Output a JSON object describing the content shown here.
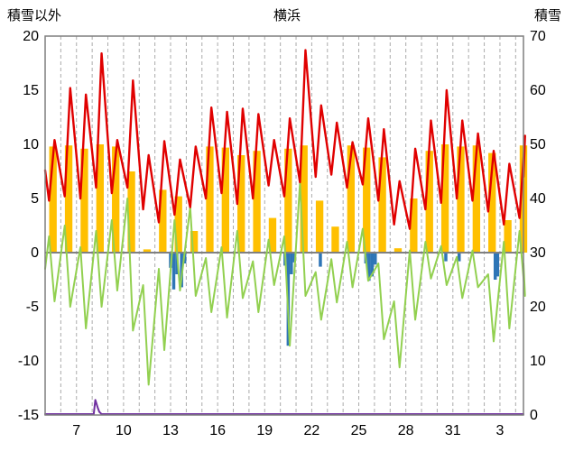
{
  "header": {
    "left_axis_title": "積雪以外",
    "title": "横浜",
    "right_axis_title": "積雪"
  },
  "chart_data": {
    "type": "combo line+bar weather chart",
    "title": "横浜",
    "left_axis": {
      "label": "積雪以外",
      "min": -15,
      "max": 20,
      "ticks": [
        20,
        15,
        10,
        5,
        0,
        -5,
        -10,
        -15
      ]
    },
    "right_axis": {
      "label": "積雪",
      "min": 0,
      "max": 70,
      "ticks": [
        70,
        60,
        50,
        40,
        30,
        20,
        10,
        0
      ]
    },
    "x_axis": {
      "start": 5.0,
      "end": 35.5,
      "grid_every_day": 1,
      "ticks": [
        {
          "day": 7,
          "label": "7"
        },
        {
          "day": 10,
          "label": "10"
        },
        {
          "day": 13,
          "label": "13"
        },
        {
          "day": 16,
          "label": "16"
        },
        {
          "day": 19,
          "label": "19"
        },
        {
          "day": 22,
          "label": "22"
        },
        {
          "day": 25,
          "label": "25"
        },
        {
          "day": 28,
          "label": "28"
        },
        {
          "day": 31,
          "label": "31"
        },
        {
          "day": 34,
          "label": "3"
        }
      ]
    },
    "colors": {
      "red_line": "#e00000",
      "green_line": "#92d050",
      "sunshine": "#ffc000",
      "rain": "#2e75b6",
      "snow": "#7030a0",
      "zero_line": "#808080",
      "grid": "#ababab",
      "border": "#7f7f7f",
      "text": "#000000"
    },
    "series": [
      {
        "name": "red-line",
        "type": "line",
        "axis": "left",
        "color": "#e00000"
      },
      {
        "name": "green-line",
        "type": "line",
        "axis": "left",
        "color": "#92d050"
      },
      {
        "name": "sunshine-bars",
        "type": "bar",
        "axis": "left",
        "color": "#ffc000"
      },
      {
        "name": "rain-bars",
        "type": "bar",
        "axis": "left",
        "color": "#2e75b6"
      },
      {
        "name": "snow-line",
        "type": "line",
        "axis": "right",
        "color": "#7030a0"
      }
    ],
    "daily": [
      {
        "d": 5,
        "tmin": 4.8,
        "tmax": 10.4,
        "gmin": -4.5,
        "gmax": 1.5,
        "sun": 9.8
      },
      {
        "d": 6,
        "tmin": 5.2,
        "tmax": 15.2,
        "gmin": -5.0,
        "gmax": 2.5,
        "sun": 9.9
      },
      {
        "d": 7,
        "tmin": 5.0,
        "tmax": 14.6,
        "gmin": -7.0,
        "gmax": 0.5,
        "sun": 9.6
      },
      {
        "d": 8,
        "tmin": 6.0,
        "tmax": 18.4,
        "gmin": -5.0,
        "gmax": 2.0,
        "sun": 10.0
      },
      {
        "d": 9,
        "tmin": 5.5,
        "tmax": 10.4,
        "gmin": -3.5,
        "gmax": 3.0,
        "sun": 9.8
      },
      {
        "d": 10,
        "tmin": 6.0,
        "tmax": 15.9,
        "gmin": -7.2,
        "gmax": 5.0,
        "sun": 7.5
      },
      {
        "d": 11,
        "tmin": 4.0,
        "tmax": 9.0,
        "gmin": -12.2,
        "gmax": -3.0,
        "sun": 0.3
      },
      {
        "d": 12,
        "tmin": 2.8,
        "tmax": 10.3,
        "gmin": -9.0,
        "gmax": -1.5,
        "sun": 5.8
      },
      {
        "d": 13,
        "tmin": 3.5,
        "tmax": 8.6,
        "gmin": -3.5,
        "gmax": 3.0,
        "sun": 5.2
      },
      {
        "d": 14,
        "tmin": 4.2,
        "tmax": 9.8,
        "gmin": -4.0,
        "gmax": 4.2,
        "sun": 2.0
      },
      {
        "d": 15,
        "tmin": 5.0,
        "tmax": 13.4,
        "gmin": -5.5,
        "gmax": -0.5,
        "sun": 9.8
      },
      {
        "d": 16,
        "tmin": 5.5,
        "tmax": 13.0,
        "gmin": -6.0,
        "gmax": 0.5,
        "sun": 9.7
      },
      {
        "d": 17,
        "tmin": 4.5,
        "tmax": 13.3,
        "gmin": -4.2,
        "gmax": 2.0,
        "sun": 9.0
      },
      {
        "d": 18,
        "tmin": 5.0,
        "tmax": 12.8,
        "gmin": -5.5,
        "gmax": -0.8,
        "sun": 9.4
      },
      {
        "d": 19,
        "tmin": 6.2,
        "tmax": 10.4,
        "gmin": -3.0,
        "gmax": 1.2,
        "sun": 3.2
      },
      {
        "d": 20,
        "tmin": 5.2,
        "tmax": 12.4,
        "gmin": -8.6,
        "gmax": 1.5,
        "sun": 9.6
      },
      {
        "d": 21,
        "tmin": 6.5,
        "tmax": 18.7,
        "gmin": -4.0,
        "gmax": 6.4,
        "sun": 9.9
      },
      {
        "d": 22,
        "tmin": 7.0,
        "tmax": 13.6,
        "gmin": -6.2,
        "gmax": -1.8,
        "sun": 4.8
      },
      {
        "d": 23,
        "tmin": 7.2,
        "tmax": 12.0,
        "gmin": -4.6,
        "gmax": -0.6,
        "sun": 2.4
      },
      {
        "d": 24,
        "tmin": 6.0,
        "tmax": 10.2,
        "gmin": -3.2,
        "gmax": 1.0,
        "sun": 9.9
      },
      {
        "d": 25,
        "tmin": 6.3,
        "tmax": 12.4,
        "gmin": -2.6,
        "gmax": 2.2,
        "sun": 9.7
      },
      {
        "d": 26,
        "tmin": 4.8,
        "tmax": 11.4,
        "gmin": -8.0,
        "gmax": -1.0,
        "sun": 8.8
      },
      {
        "d": 27,
        "tmin": 2.6,
        "tmax": 6.6,
        "gmin": -10.6,
        "gmax": -4.5,
        "sun": 0.4
      },
      {
        "d": 28,
        "tmin": 2.2,
        "tmax": 9.6,
        "gmin": -6.2,
        "gmax": 0.2,
        "sun": 5.0
      },
      {
        "d": 29,
        "tmin": 4.0,
        "tmax": 12.2,
        "gmin": -2.4,
        "gmax": 1.0,
        "sun": 9.4
      },
      {
        "d": 30,
        "tmin": 4.6,
        "tmax": 15.0,
        "gmin": -3.0,
        "gmax": 0.6,
        "sun": 10.0
      },
      {
        "d": 31,
        "tmin": 5.0,
        "tmax": 12.2,
        "gmin": -4.2,
        "gmax": -0.4,
        "sun": 9.8
      },
      {
        "d": 32,
        "tmin": 4.8,
        "tmax": 11.0,
        "gmin": -3.2,
        "gmax": 0.2,
        "sun": 9.9
      },
      {
        "d": 33,
        "tmin": 3.8,
        "tmax": 9.4,
        "gmin": -8.2,
        "gmax": -2.0,
        "sun": 9.2
      },
      {
        "d": 34,
        "tmin": 2.6,
        "tmax": 8.2,
        "gmin": -7.0,
        "gmax": 1.0,
        "sun": 3.0
      },
      {
        "d": 35,
        "tmin": 3.2,
        "tmax": 10.8,
        "gmin": -4.0,
        "gmax": 2.0,
        "sun": 9.9
      }
    ],
    "rain_bars": [
      {
        "t": 13.0,
        "v": -1.4
      },
      {
        "t": 13.2,
        "v": -3.4
      },
      {
        "t": 13.4,
        "v": -2.0
      },
      {
        "t": 13.7,
        "v": -3.2
      },
      {
        "t": 13.9,
        "v": -1.0
      },
      {
        "t": 20.3,
        "v": -1.2
      },
      {
        "t": 20.5,
        "v": -8.6
      },
      {
        "t": 20.7,
        "v": -2.0
      },
      {
        "t": 20.9,
        "v": -0.9
      },
      {
        "t": 22.55,
        "v": -1.3
      },
      {
        "t": 25.45,
        "v": -1.0
      },
      {
        "t": 25.65,
        "v": -2.6
      },
      {
        "t": 25.85,
        "v": -2.2
      },
      {
        "t": 26.05,
        "v": -1.1
      },
      {
        "t": 30.55,
        "v": -0.8
      },
      {
        "t": 31.4,
        "v": -0.8
      },
      {
        "t": 33.7,
        "v": -2.5
      },
      {
        "t": 33.85,
        "v": -2.2
      }
    ],
    "snow_line": [
      {
        "t": 5.0,
        "v": 0
      },
      {
        "t": 8.1,
        "v": 0
      },
      {
        "t": 8.2,
        "v": 2.8
      },
      {
        "t": 8.35,
        "v": 1.4
      },
      {
        "t": 8.45,
        "v": 0.6
      },
      {
        "t": 8.6,
        "v": 0
      },
      {
        "t": 35.5,
        "v": 0
      }
    ]
  }
}
